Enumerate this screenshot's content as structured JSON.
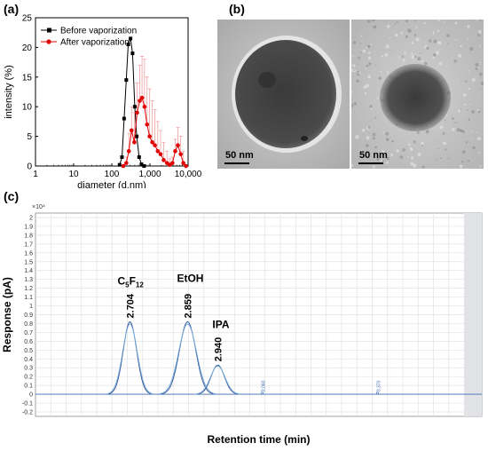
{
  "panel_labels": {
    "a": "(a)",
    "b": "(b)",
    "c": "(c)"
  },
  "panel_b": {
    "scale_left": "50 nm",
    "scale_right": "50 nm"
  },
  "chart_data": [
    {
      "type": "line",
      "xscale": "log",
      "xlim": [
        1,
        10000
      ],
      "ylim": [
        0,
        25
      ],
      "xlabel": "diameter (d.nm)",
      "ylabel": "intensity (%)",
      "xticks": [
        1,
        10,
        100,
        1000,
        10000
      ],
      "xtick_labels": [
        "1",
        "10",
        "100",
        "1,000",
        "10,000"
      ],
      "yticks": [
        0,
        5,
        10,
        15,
        20,
        25
      ],
      "ytick_labels": [
        "0",
        "5",
        "10",
        "15",
        "20",
        "25"
      ],
      "legend_position": "top-left",
      "series": [
        {
          "name": "Before vaporization",
          "color": "#000000",
          "marker": "square",
          "x": [
            160,
            185,
            210,
            240,
            270,
            310,
            350,
            400,
            450,
            520,
            600,
            700
          ],
          "y": [
            0.2,
            1.5,
            8,
            14.5,
            20.5,
            21.5,
            19,
            10,
            5,
            1.5,
            0.3,
            0
          ]
        },
        {
          "name": "After vaporization",
          "color": "#e00000",
          "marker": "circle",
          "x": [
            200,
            240,
            280,
            330,
            390,
            460,
            540,
            620,
            720,
            840,
            980,
            1150,
            1350,
            1600,
            1900,
            2300,
            2800,
            3300,
            3900,
            4600,
            5400,
            6400,
            7500,
            8800
          ],
          "y": [
            0,
            0.5,
            2.5,
            6,
            4,
            9,
            11,
            11.5,
            10,
            7,
            5,
            4,
            3.5,
            2.5,
            2,
            1,
            0.5,
            0.2,
            0.5,
            2.5,
            3.5,
            2,
            0.5,
            0
          ],
          "err": [
            0,
            1,
            3,
            4,
            5,
            5,
            6,
            7,
            8,
            8,
            8,
            7,
            6,
            5,
            4,
            3,
            2,
            1,
            1,
            2,
            3,
            3,
            2,
            0
          ]
        }
      ]
    },
    {
      "type": "line",
      "xlabel": "Retention time (min)",
      "ylabel": "Response (pA)",
      "y_multiplier": "×10⁴",
      "ylim": [
        -0.25,
        2.05
      ],
      "yticks": [
        -0.2,
        -0.1,
        0,
        0.1,
        0.2,
        0.3,
        0.4,
        0.5,
        0.6,
        0.7,
        0.8,
        0.9,
        1,
        1.1,
        1.2,
        1.3,
        1.4,
        1.5,
        1.6,
        1.7,
        1.8,
        1.9,
        2
      ],
      "ytick_labels": [
        "-0.2",
        "-0.1",
        "0",
        "0.1",
        "0.2",
        "0.3",
        "0.4",
        "0.5",
        "0.6",
        "0.7",
        "0.8",
        "0.9",
        "1",
        "1.1",
        "1.2",
        "1.3",
        "1.4",
        "1.5",
        "1.6",
        "1.7",
        "1.8",
        "1.9",
        "2"
      ],
      "xlim": [
        2.45,
        3.65
      ],
      "peaks": [
        {
          "time": 2.704,
          "height": 0.82,
          "label": "2.704",
          "compound": "C5F12"
        },
        {
          "time": 2.859,
          "height": 0.82,
          "label": "2.859",
          "compound": "EtOH"
        },
        {
          "time": 2.94,
          "height": 0.33,
          "label": "2.940",
          "compound": "IPA"
        }
      ],
      "minor_peaks": [
        {
          "time": 3.06,
          "label": "3.060"
        },
        {
          "time": 3.37,
          "label": "3.370"
        }
      ],
      "compound_labels": {
        "c5f12_base": "C",
        "c5f12_sub1": "5",
        "c5f12_mid": "F",
        "c5f12_sub2": "12",
        "etoh": "EtOH",
        "ipa": "IPA"
      },
      "line_color": "#3d6bb3"
    }
  ]
}
